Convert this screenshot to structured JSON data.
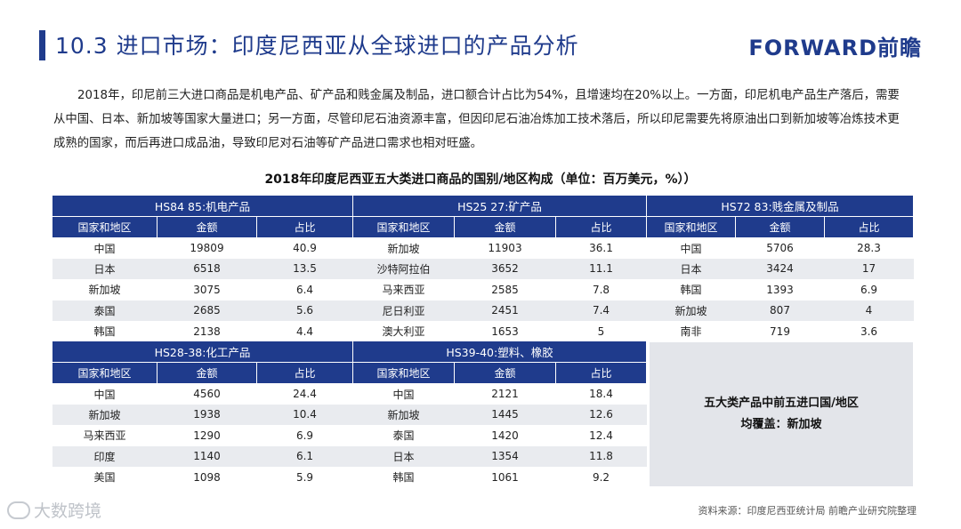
{
  "header": {
    "title": "10.3 进口市场：印度尼西亚从全球进口的产品分析",
    "logo": "FORWARD前瞻"
  },
  "intro": "2018年，印尼前三大进口商品是机电产品、矿产品和贱金属及制品，进口额合计占比为54%，且增速均在20%以上。一方面，印尼机电产品生产落后，需要从中国、日本、新加坡等国家大量进口；另一方面，尽管印尼石油资源丰富，但因印尼石油冶炼加工技术落后，所以印尼需要先将原油出口到新加坡等冶炼技术更成熟的国家，而后再进口成品油，导致印尼对石油等矿产品进口需求也相对旺盛。",
  "table_title": "2018年印度尼西亚五大类进口商品的国别/地区构成（单位：百万美元，%））",
  "columns": [
    "国家和地区",
    "金额",
    "占比"
  ],
  "groups": [
    {
      "name": "HS84 85:机电产品",
      "rows": [
        [
          "中国",
          "19809",
          "40.9"
        ],
        [
          "日本",
          "6518",
          "13.5"
        ],
        [
          "新加坡",
          "3075",
          "6.4"
        ],
        [
          "泰国",
          "2685",
          "5.6"
        ],
        [
          "韩国",
          "2138",
          "4.4"
        ]
      ]
    },
    {
      "name": "HS25 27:矿产品",
      "rows": [
        [
          "新加坡",
          "11903",
          "36.1"
        ],
        [
          "沙特阿拉伯",
          "3652",
          "11.1"
        ],
        [
          "马来西亚",
          "2585",
          "7.8"
        ],
        [
          "尼日利亚",
          "2451",
          "7.4"
        ],
        [
          "澳大利亚",
          "1653",
          "5"
        ]
      ]
    },
    {
      "name": "HS72 83:贱金属及制品",
      "rows": [
        [
          "中国",
          "5706",
          "28.3"
        ],
        [
          "日本",
          "3424",
          "17"
        ],
        [
          "韩国",
          "1393",
          "6.9"
        ],
        [
          "新加坡",
          "807",
          "4"
        ],
        [
          "南非",
          "719",
          "3.6"
        ]
      ]
    },
    {
      "name": "HS28-38:化工产品",
      "rows": [
        [
          "中国",
          "4560",
          "24.4"
        ],
        [
          "新加坡",
          "1938",
          "10.4"
        ],
        [
          "马来西亚",
          "1290",
          "6.9"
        ],
        [
          "印度",
          "1140",
          "6.1"
        ],
        [
          "美国",
          "1098",
          "5.9"
        ]
      ]
    },
    {
      "name": "HS39-40:塑料、橡胶",
      "rows": [
        [
          "中国",
          "2121",
          "18.4"
        ],
        [
          "新加坡",
          "1445",
          "12.6"
        ],
        [
          "泰国",
          "1420",
          "12.4"
        ],
        [
          "日本",
          "1354",
          "11.8"
        ],
        [
          "韩国",
          "1061",
          "9.2"
        ]
      ]
    }
  ],
  "summary": {
    "line1": "五大类产品中前五进口国/地区",
    "line2": "均覆盖：新加坡"
  },
  "source": "资料来源：印度尼西亚统计局 前瞻产业研究院整理",
  "watermark": "大数跨境",
  "colors": {
    "accent": "#1f3b8c",
    "stripe": "#e9ebef"
  }
}
